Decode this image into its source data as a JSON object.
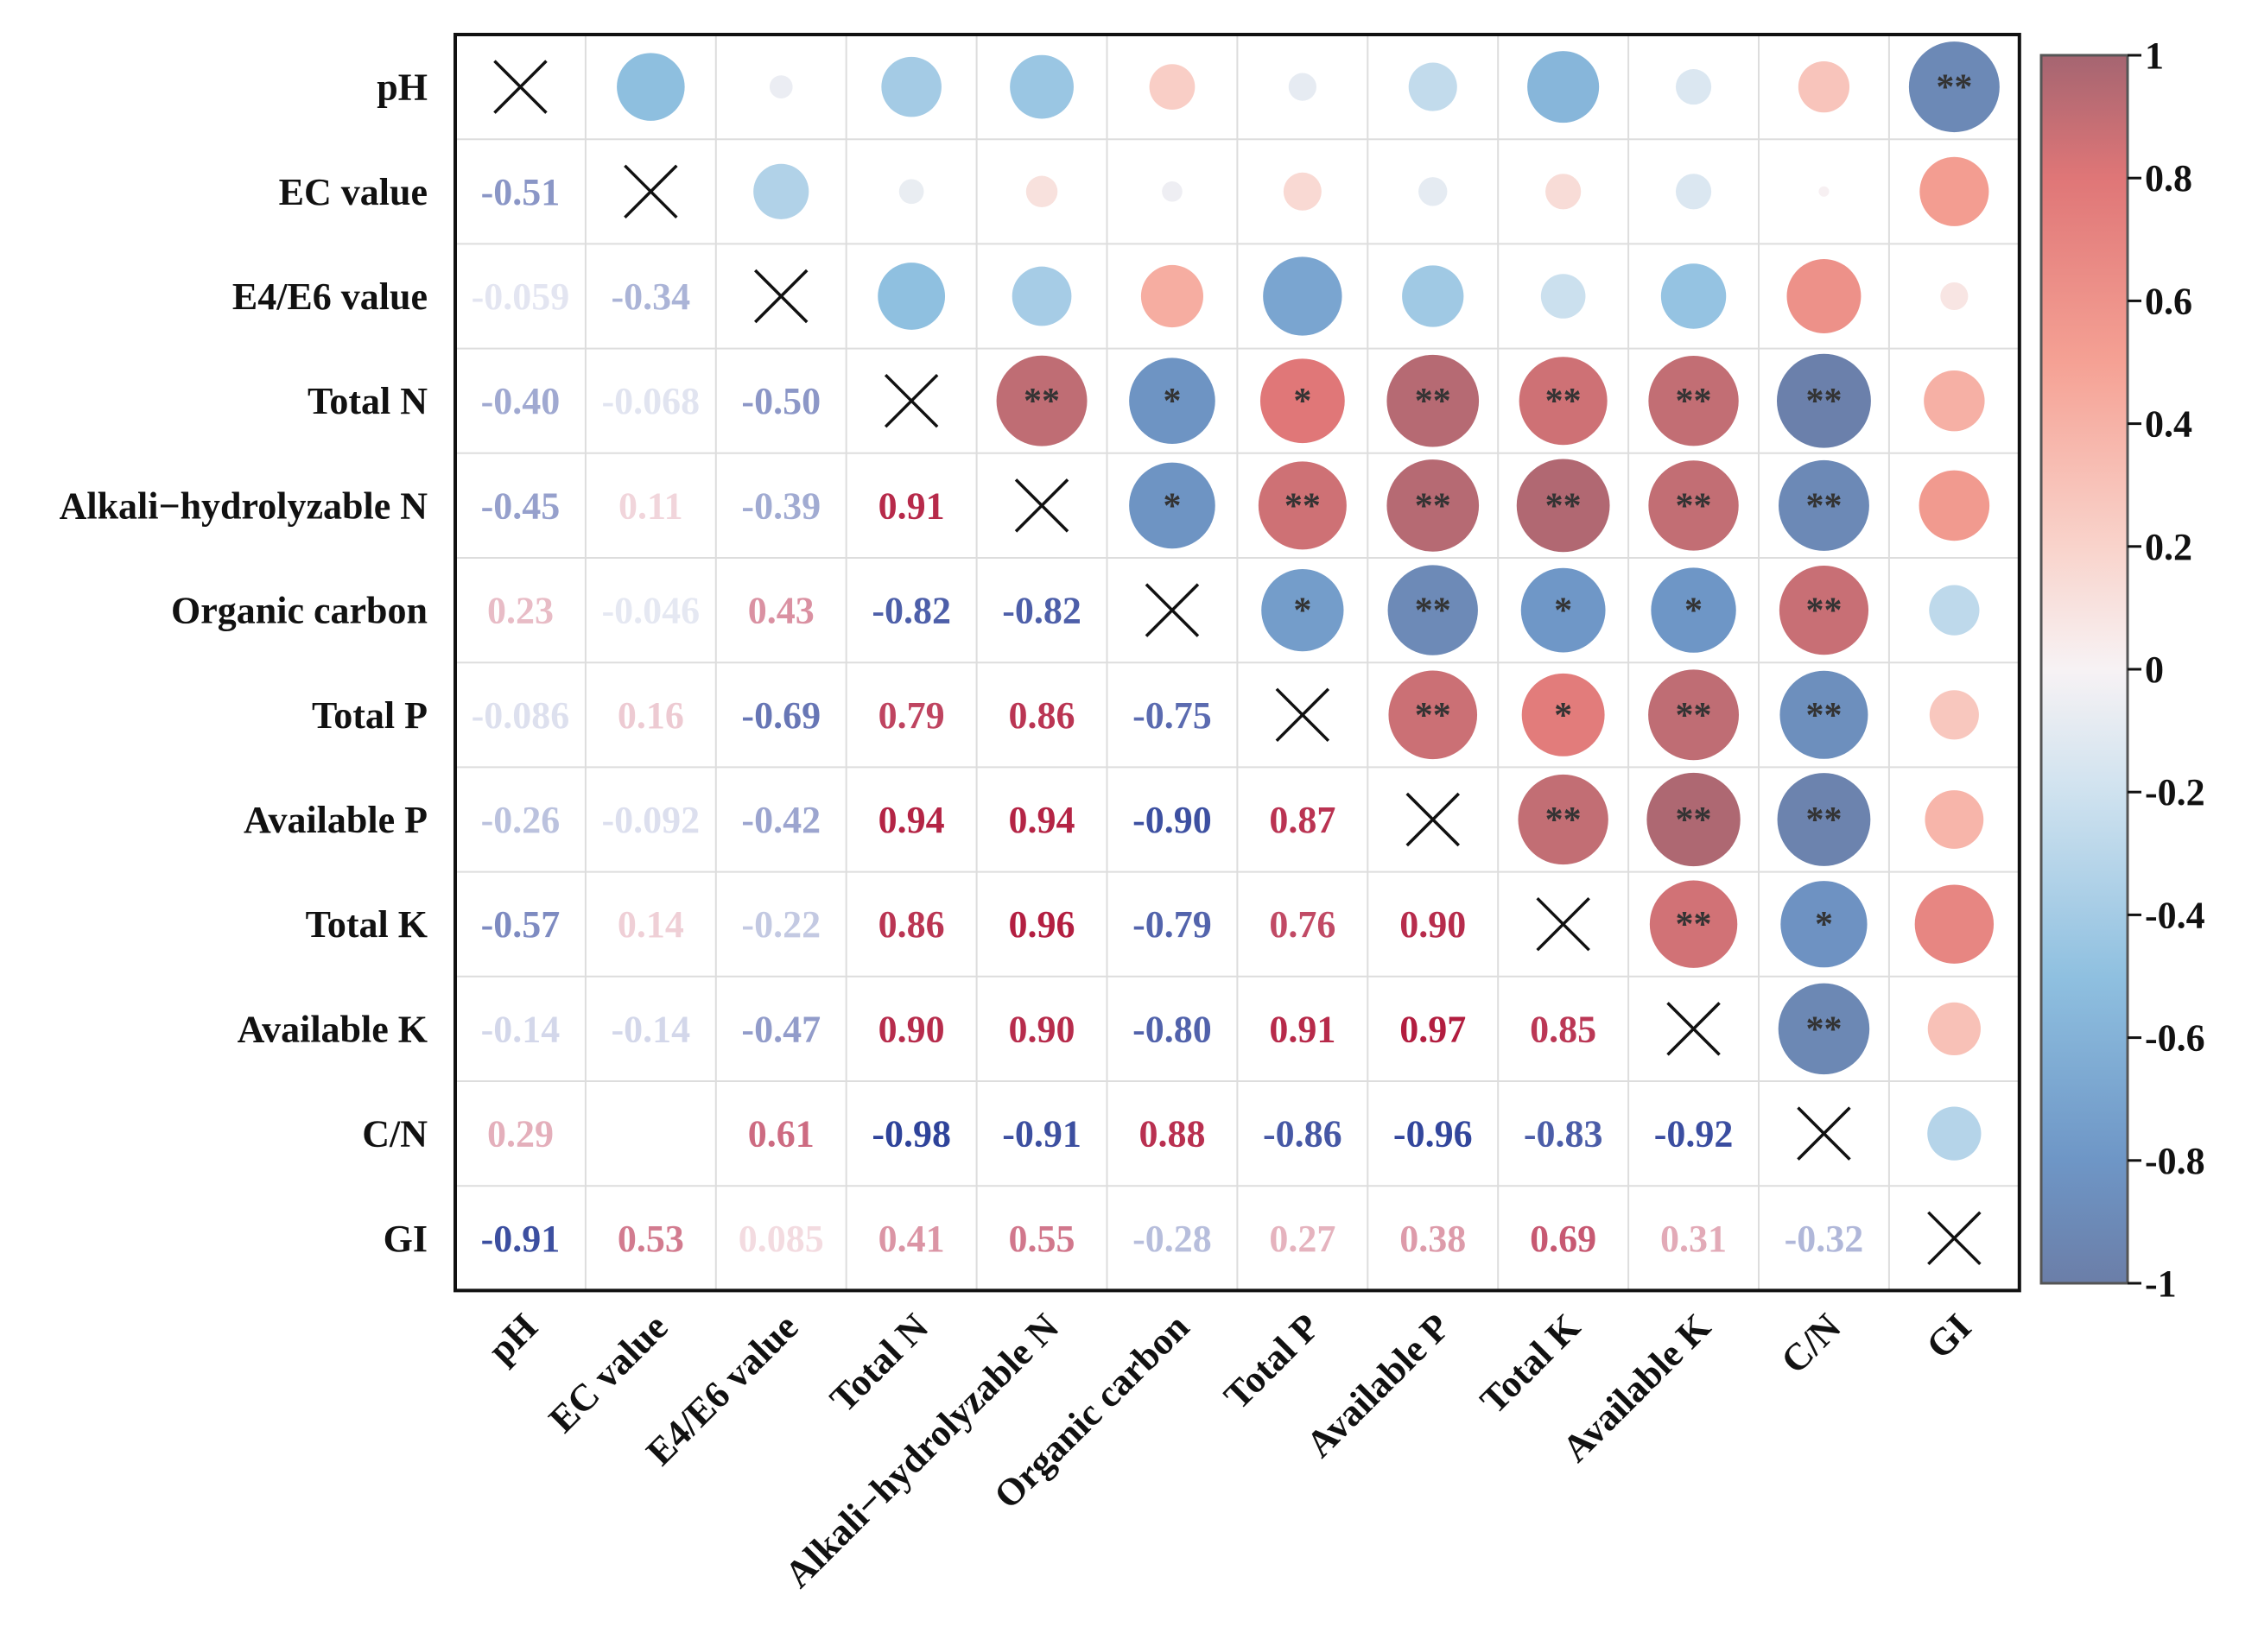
{
  "chart_data": {
    "type": "heatmap",
    "subtype": "correlation-matrix",
    "title": "",
    "variables": [
      "pH",
      "EC value",
      "E4/E6 value",
      "Total N",
      "Alkali−hydrolyzable N",
      "Organic carbon",
      "Total P",
      "Available P",
      "Total K",
      "Available K",
      "C/N",
      "GI"
    ],
    "lower_triangle_style": "numbers",
    "upper_triangle_style": "circles",
    "diagonal_marker": "X",
    "values": [
      [
        "1",
        "-0.51",
        "-0.059",
        "-0.40",
        "-0.45",
        "0.23",
        "-0.086",
        "-0.26",
        "-0.57",
        "-0.14",
        "0.29",
        "-0.91"
      ],
      [
        "-0.51",
        "1",
        "-0.34",
        "-0.068",
        "0.11",
        "-0.046",
        "0.16",
        "-0.092",
        "0.14",
        "-0.14",
        "0.012",
        "0.53"
      ],
      [
        "-0.059",
        "-0.34",
        "1",
        "-0.50",
        "-0.39",
        "0.43",
        "-0.69",
        "-0.42",
        "-0.22",
        "-0.47",
        "0.61",
        "0.085"
      ],
      [
        "-0.40",
        "-0.068",
        "-0.50",
        "1",
        "0.91",
        "-0.82",
        "0.79",
        "0.94",
        "0.86",
        "0.90",
        "-0.98",
        "0.41"
      ],
      [
        "-0.45",
        "0.11",
        "-0.39",
        "0.91",
        "1",
        "-0.82",
        "0.86",
        "0.94",
        "0.96",
        "0.90",
        "-0.91",
        "0.55"
      ],
      [
        "0.23",
        "-0.046",
        "0.43",
        "-0.82",
        "-0.82",
        "1",
        "-0.75",
        "-0.90",
        "-0.79",
        "-0.80",
        "0.88",
        "-0.28"
      ],
      [
        "-0.086",
        "0.16",
        "-0.69",
        "0.79",
        "0.86",
        "-0.75",
        "1",
        "0.87",
        "0.76",
        "0.91",
        "-0.86",
        "0.27"
      ],
      [
        "-0.26",
        "-0.092",
        "-0.42",
        "0.94",
        "0.94",
        "-0.90",
        "0.87",
        "1",
        "0.90",
        "0.97",
        "-0.96",
        "0.38"
      ],
      [
        "-0.57",
        "0.14",
        "-0.22",
        "0.86",
        "0.96",
        "-0.79",
        "0.76",
        "0.90",
        "1",
        "0.85",
        "-0.83",
        "0.69"
      ],
      [
        "-0.14",
        "-0.14",
        "-0.47",
        "0.90",
        "0.90",
        "-0.80",
        "0.91",
        "0.97",
        "0.85",
        "1",
        "-0.92",
        "0.31"
      ],
      [
        "0.29",
        "0.012",
        "0.61",
        "-0.98",
        "-0.91",
        "0.88",
        "-0.86",
        "-0.96",
        "-0.83",
        "-0.92",
        "1",
        "-0.32"
      ],
      [
        "-0.91",
        "0.53",
        "0.085",
        "0.41",
        "0.55",
        "-0.28",
        "0.27",
        "0.38",
        "0.69",
        "0.31",
        "-0.32",
        "1"
      ]
    ],
    "lower_hidden_labels": [
      [
        10,
        1
      ]
    ],
    "significance": [
      [
        "",
        "",
        "",
        "",
        "",
        "",
        "",
        "",
        "",
        "",
        "",
        "**"
      ],
      [
        "",
        "",
        "",
        "",
        "",
        "",
        "",
        "",
        "",
        "",
        "",
        ""
      ],
      [
        "",
        "",
        "",
        "",
        "",
        "",
        "",
        "",
        "",
        "",
        "",
        ""
      ],
      [
        "",
        "",
        "",
        "",
        "**",
        "*",
        "*",
        "**",
        "**",
        "**",
        "**",
        ""
      ],
      [
        "",
        "",
        "",
        "",
        "",
        "*",
        "**",
        "**",
        "**",
        "**",
        "**",
        ""
      ],
      [
        "",
        "",
        "",
        "",
        "",
        "",
        "*",
        "**",
        "*",
        "*",
        "**",
        ""
      ],
      [
        "",
        "",
        "",
        "",
        "",
        "",
        "",
        "**",
        "*",
        "**",
        "**",
        ""
      ],
      [
        "",
        "",
        "",
        "",
        "",
        "",
        "",
        "",
        "**",
        "**",
        "**",
        ""
      ],
      [
        "",
        "",
        "",
        "",
        "",
        "",
        "",
        "",
        "",
        "**",
        "*",
        ""
      ],
      [
        "",
        "",
        "",
        "",
        "",
        "",
        "",
        "",
        "",
        "",
        "**",
        ""
      ],
      [
        "",
        "",
        "",
        "",
        "",
        "",
        "",
        "",
        "",
        "",
        "",
        ""
      ],
      [
        "",
        "",
        "",
        "",
        "",
        "",
        "",
        "",
        "",
        "",
        "",
        ""
      ]
    ],
    "colorbar": {
      "range": [
        -1,
        1
      ],
      "ticks": [
        1,
        0.8,
        0.6,
        0.4,
        0.2,
        0,
        -0.2,
        -0.4,
        -0.6,
        -0.8,
        -1
      ],
      "tick_labels": [
        "1",
        "0.8",
        "0.6",
        "0.4",
        "0.2",
        "0",
        "-0.2",
        "-0.4",
        "-0.6",
        "-0.8",
        "-1"
      ],
      "colormap_stops": [
        {
          "value": -1.0,
          "color": "#6b7ea8"
        },
        {
          "value": -0.8,
          "color": "#6e96c6"
        },
        {
          "value": -0.5,
          "color": "#8fc0e0"
        },
        {
          "value": -0.2,
          "color": "#cfe2ef"
        },
        {
          "value": 0.0,
          "color": "#f7f2f4"
        },
        {
          "value": 0.2,
          "color": "#f9d3cb"
        },
        {
          "value": 0.5,
          "color": "#f5a194"
        },
        {
          "value": 0.8,
          "color": "#df7677"
        },
        {
          "value": 1.0,
          "color": "#a56571"
        }
      ],
      "border_color": "#555555"
    },
    "text_colors": {
      "positive": "#b0173a",
      "negative": "#2a3f98"
    },
    "grid_color": "#dddddd",
    "frame_color": "#111111",
    "diagonal_mark_color": "#111111"
  }
}
